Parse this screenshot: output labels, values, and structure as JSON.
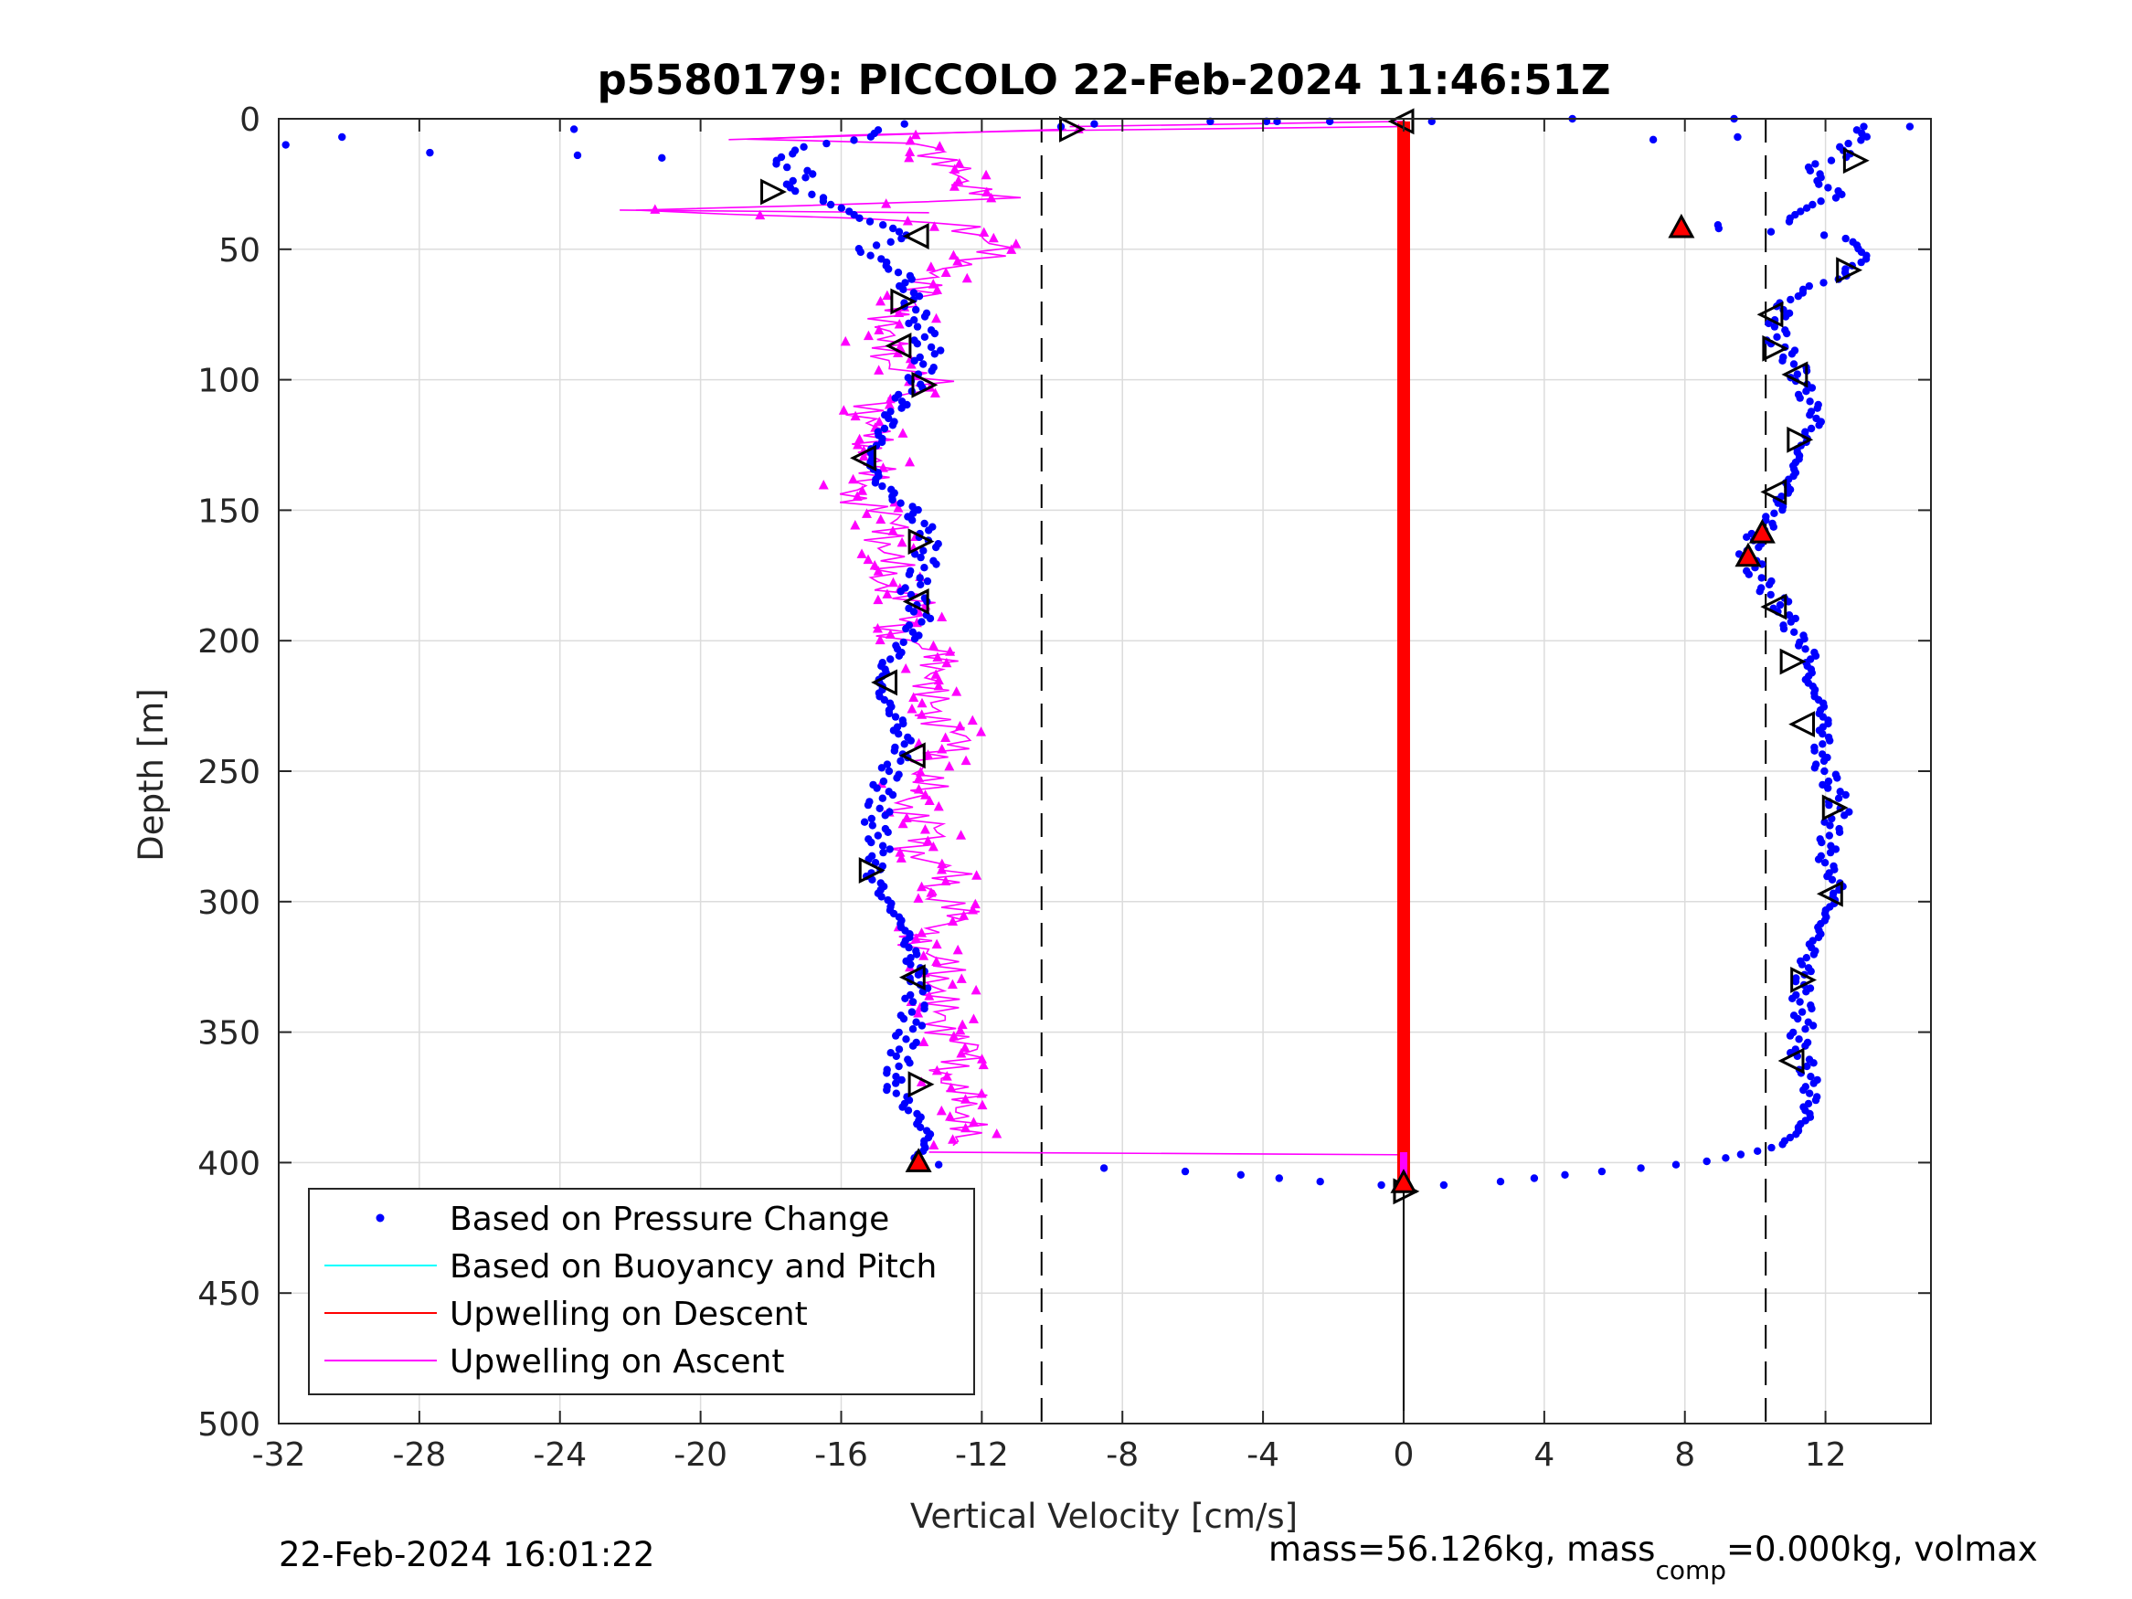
{
  "chart_data": {
    "type": "scatter",
    "title": "p5580179: PICCOLO 22-Feb-2024 11:46:51Z",
    "xlabel": "Vertical Velocity [cm/s]",
    "ylabel": "Depth [m]",
    "xlim": [
      -32,
      15
    ],
    "ylim": [
      0,
      500
    ],
    "y_reversed": true,
    "x_ticks": [
      -32,
      -28,
      -24,
      -20,
      -16,
      -12,
      -8,
      -4,
      0,
      4,
      8,
      12
    ],
    "x_tick_labels": [
      "-32",
      "-28",
      "-24",
      "-20",
      "-16",
      "-12",
      "-8",
      "-4",
      "0",
      "4",
      "8",
      "12"
    ],
    "y_ticks": [
      0,
      50,
      100,
      150,
      200,
      250,
      300,
      350,
      400,
      450,
      500
    ],
    "y_tick_labels": [
      "0",
      "50",
      "100",
      "150",
      "200",
      "250",
      "300",
      "350",
      "400",
      "450",
      "500"
    ],
    "grid": true,
    "legend_position": "bottom-left",
    "reference_lines": [
      -10.3,
      10.3
    ],
    "series": [
      {
        "name": "Based on Pressure Change",
        "color": "#0000ff",
        "marker": "dot",
        "points_descent": [
          [
            -9.5,
            3
          ],
          [
            -14.2,
            3
          ],
          [
            -18.1,
            15
          ],
          [
            -17.0,
            20
          ],
          [
            -17.5,
            28
          ],
          [
            -16.5,
            30
          ],
          [
            -16.0,
            35
          ],
          [
            -15.0,
            40
          ],
          [
            -14.0,
            45
          ],
          [
            -15.5,
            50
          ],
          [
            -14.8,
            55
          ],
          [
            -14.2,
            60
          ],
          [
            -14.0,
            70
          ],
          [
            -13.7,
            80
          ],
          [
            -13.5,
            90
          ],
          [
            -13.8,
            100
          ],
          [
            -14.4,
            110
          ],
          [
            -14.8,
            120
          ],
          [
            -15.2,
            130
          ],
          [
            -14.9,
            140
          ],
          [
            -14.0,
            150
          ],
          [
            -13.5,
            160
          ],
          [
            -13.6,
            170
          ],
          [
            -14.0,
            180
          ],
          [
            -13.7,
            190
          ],
          [
            -14.1,
            200
          ],
          [
            -14.8,
            210
          ],
          [
            -14.9,
            220
          ],
          [
            -14.4,
            230
          ],
          [
            -14.2,
            240
          ],
          [
            -14.6,
            250
          ],
          [
            -14.9,
            260
          ],
          [
            -15.0,
            270
          ],
          [
            -14.9,
            280
          ],
          [
            -15.1,
            290
          ],
          [
            -14.7,
            300
          ],
          [
            -14.2,
            310
          ],
          [
            -14.0,
            320
          ],
          [
            -13.8,
            330
          ],
          [
            -13.9,
            340
          ],
          [
            -14.1,
            350
          ],
          [
            -14.3,
            360
          ],
          [
            -14.6,
            370
          ],
          [
            -14.0,
            380
          ],
          [
            -13.5,
            390
          ],
          [
            -13.9,
            400
          ],
          [
            -13.2,
            401
          ],
          [
            -8.8,
            402
          ],
          [
            -5.0,
            404
          ],
          [
            -2.0,
            408
          ],
          [
            0,
            409
          ]
        ],
        "points_ascent": [
          [
            13.3,
            3
          ],
          [
            12.8,
            8
          ],
          [
            12.6,
            13
          ],
          [
            11.5,
            20
          ],
          [
            12.0,
            25
          ],
          [
            12.4,
            30
          ],
          [
            11.2,
            35
          ],
          [
            11.0,
            40
          ],
          [
            8.0,
            41
          ],
          [
            6.5,
            40
          ],
          [
            12.5,
            45
          ],
          [
            13.2,
            52
          ],
          [
            12.5,
            60
          ],
          [
            11.0,
            68
          ],
          [
            10.7,
            75
          ],
          [
            10.6,
            85
          ],
          [
            11.2,
            95
          ],
          [
            11.4,
            105
          ],
          [
            11.8,
            115
          ],
          [
            11.3,
            125
          ],
          [
            11.1,
            135
          ],
          [
            10.8,
            145
          ],
          [
            10.4,
            155
          ],
          [
            10.0,
            160
          ],
          [
            9.8,
            168
          ],
          [
            10.2,
            178
          ],
          [
            10.7,
            185
          ],
          [
            11.0,
            195
          ],
          [
            11.6,
            205
          ],
          [
            11.5,
            215
          ],
          [
            11.9,
            225
          ],
          [
            12.0,
            235
          ],
          [
            11.8,
            245
          ],
          [
            12.2,
            255
          ],
          [
            12.4,
            265
          ],
          [
            12.1,
            275
          ],
          [
            12.0,
            285
          ],
          [
            12.4,
            295
          ],
          [
            12.0,
            305
          ],
          [
            11.7,
            315
          ],
          [
            11.4,
            325
          ],
          [
            11.3,
            335
          ],
          [
            11.4,
            345
          ],
          [
            11.2,
            355
          ],
          [
            11.5,
            365
          ],
          [
            11.6,
            375
          ],
          [
            11.4,
            385
          ],
          [
            10.8,
            393
          ],
          [
            9.0,
            399
          ],
          [
            6.0,
            403
          ],
          [
            3.0,
            407
          ],
          [
            0.5,
            409
          ]
        ],
        "surface_scatter": [
          [
            -31.8,
            10
          ],
          [
            -30.2,
            7
          ],
          [
            -27.7,
            13
          ],
          [
            -23.6,
            4
          ],
          [
            -23.5,
            14
          ],
          [
            -21.1,
            15
          ],
          [
            -14.2,
            2
          ],
          [
            -8.8,
            2
          ],
          [
            -5.5,
            1
          ],
          [
            -3.9,
            1
          ],
          [
            -3.6,
            1
          ],
          [
            -2.1,
            1
          ],
          [
            0.8,
            1
          ],
          [
            4.8,
            0
          ],
          [
            7.1,
            8
          ],
          [
            9.4,
            0
          ],
          [
            9.5,
            7
          ],
          [
            14.4,
            3
          ]
        ]
      },
      {
        "name": "Based on Buoyancy and Pitch",
        "color": "#00ffff",
        "marker": "line",
        "points": []
      },
      {
        "name": "Upwelling on Descent",
        "color": "#ff0000",
        "marker": "line",
        "points": [
          [
            0,
            1
          ],
          [
            0,
            10
          ],
          [
            0,
            50
          ],
          [
            0,
            100
          ],
          [
            0,
            150
          ],
          [
            0,
            200
          ],
          [
            0,
            250
          ],
          [
            0,
            300
          ],
          [
            0,
            350
          ],
          [
            0,
            400
          ],
          [
            0,
            409
          ]
        ]
      },
      {
        "name": "Upwelling on Ascent",
        "color": "#ff00ff",
        "marker": "triangle",
        "points": [
          [
            -9.6,
            4
          ],
          [
            -19.2,
            8
          ],
          [
            -14.5,
            6
          ],
          [
            -13.0,
            11
          ],
          [
            -13.6,
            15
          ],
          [
            -12.9,
            20
          ],
          [
            -12.2,
            25
          ],
          [
            -11.2,
            31
          ],
          [
            -22.3,
            35
          ],
          [
            -12.4,
            40
          ],
          [
            -11.6,
            48
          ],
          [
            -12.5,
            55
          ],
          [
            -13.4,
            62
          ],
          [
            -14.2,
            70
          ],
          [
            -14.4,
            78
          ],
          [
            -15.0,
            85
          ],
          [
            -14.6,
            92
          ],
          [
            -13.5,
            100
          ],
          [
            -14.6,
            108
          ],
          [
            -15.3,
            115
          ],
          [
            -15.2,
            122
          ],
          [
            -14.8,
            130
          ],
          [
            -15.5,
            138
          ],
          [
            -15.4,
            145
          ],
          [
            -14.8,
            152
          ],
          [
            -14.5,
            160
          ],
          [
            -14.7,
            168
          ],
          [
            -14.9,
            175
          ],
          [
            -14.1,
            183
          ],
          [
            -13.9,
            190
          ],
          [
            -14.4,
            198
          ],
          [
            -13.5,
            205
          ],
          [
            -13.0,
            213
          ],
          [
            -13.8,
            220
          ],
          [
            -13.2,
            228
          ],
          [
            -12.7,
            235
          ],
          [
            -13.1,
            243
          ],
          [
            -13.6,
            250
          ],
          [
            -13.9,
            258
          ],
          [
            -14.0,
            265
          ],
          [
            -13.5,
            273
          ],
          [
            -13.8,
            280
          ],
          [
            -13.1,
            288
          ],
          [
            -13.3,
            295
          ],
          [
            -12.6,
            302
          ],
          [
            -13.4,
            310
          ],
          [
            -13.7,
            318
          ],
          [
            -13.2,
            325
          ],
          [
            -13.0,
            333
          ],
          [
            -13.5,
            340
          ],
          [
            -12.9,
            348
          ],
          [
            -12.5,
            355
          ],
          [
            -12.7,
            363
          ],
          [
            -12.9,
            370
          ],
          [
            -12.6,
            378
          ],
          [
            -12.1,
            385
          ],
          [
            -12.8,
            390
          ],
          [
            -13.5,
            395
          ],
          [
            0.1,
            396
          ]
        ]
      }
    ],
    "event_markers": [
      {
        "type": "right-triangle",
        "x": -9.5,
        "y": 4
      },
      {
        "type": "left-triangle",
        "x": 0.0,
        "y": 1
      },
      {
        "type": "right-triangle",
        "x": 12.8,
        "y": 16
      },
      {
        "type": "right-triangle",
        "x": -18.0,
        "y": 28
      },
      {
        "type": "left-triangle",
        "x": -13.8,
        "y": 45
      },
      {
        "type": "right-triangle",
        "x": 12.6,
        "y": 58
      },
      {
        "type": "right-triangle",
        "x": -14.3,
        "y": 70
      },
      {
        "type": "left-triangle",
        "x": 10.5,
        "y": 75
      },
      {
        "type": "left-triangle",
        "x": -14.3,
        "y": 87
      },
      {
        "type": "right-triangle",
        "x": 10.5,
        "y": 88
      },
      {
        "type": "left-triangle",
        "x": 11.2,
        "y": 98
      },
      {
        "type": "right-triangle",
        "x": -13.7,
        "y": 102
      },
      {
        "type": "right-triangle",
        "x": 11.2,
        "y": 123
      },
      {
        "type": "left-triangle",
        "x": -15.3,
        "y": 130
      },
      {
        "type": "left-triangle",
        "x": 10.6,
        "y": 143
      },
      {
        "type": "right-triangle",
        "x": -13.8,
        "y": 162
      },
      {
        "type": "left-triangle",
        "x": -13.8,
        "y": 185
      },
      {
        "type": "left-triangle",
        "x": 10.6,
        "y": 187
      },
      {
        "type": "right-triangle",
        "x": 11.0,
        "y": 208
      },
      {
        "type": "left-triangle",
        "x": -14.7,
        "y": 216
      },
      {
        "type": "left-triangle",
        "x": 11.4,
        "y": 232
      },
      {
        "type": "left-triangle",
        "x": -13.9,
        "y": 244
      },
      {
        "type": "right-triangle",
        "x": 12.2,
        "y": 264
      },
      {
        "type": "right-triangle",
        "x": -15.2,
        "y": 288
      },
      {
        "type": "left-triangle",
        "x": 12.2,
        "y": 297
      },
      {
        "type": "left-triangle",
        "x": -13.9,
        "y": 329
      },
      {
        "type": "right-triangle",
        "x": 11.3,
        "y": 330
      },
      {
        "type": "left-triangle",
        "x": 11.1,
        "y": 361
      },
      {
        "type": "right-triangle",
        "x": -13.8,
        "y": 370
      },
      {
        "type": "right-triangle",
        "x": 0.0,
        "y": 411
      },
      {
        "type": "filled-triangle",
        "x": 7.9,
        "y": 42
      },
      {
        "type": "filled-triangle",
        "x": 10.2,
        "y": 159
      },
      {
        "type": "filled-triangle",
        "x": 9.8,
        "y": 168
      },
      {
        "type": "filled-triangle",
        "x": -13.8,
        "y": 400
      },
      {
        "type": "filled-triangle",
        "x": 0.0,
        "y": 408
      }
    ]
  },
  "legend": {
    "items": [
      {
        "label": "Based on Pressure Change",
        "color": "#0000ff",
        "kind": "dot"
      },
      {
        "label": "Based on Buoyancy and Pitch",
        "color": "#00ffff",
        "kind": "line"
      },
      {
        "label": "Upwelling on Descent",
        "color": "#ff0000",
        "kind": "line"
      },
      {
        "label": "Upwelling on Ascent",
        "color": "#ff00ff",
        "kind": "line"
      }
    ]
  },
  "footer": {
    "timestamp": "22-Feb-2024 16:01:22",
    "mass_text_a": "mass=56.126kg, mass",
    "mass_sub": "comp",
    "mass_text_b": "=0.000kg, volmax"
  }
}
